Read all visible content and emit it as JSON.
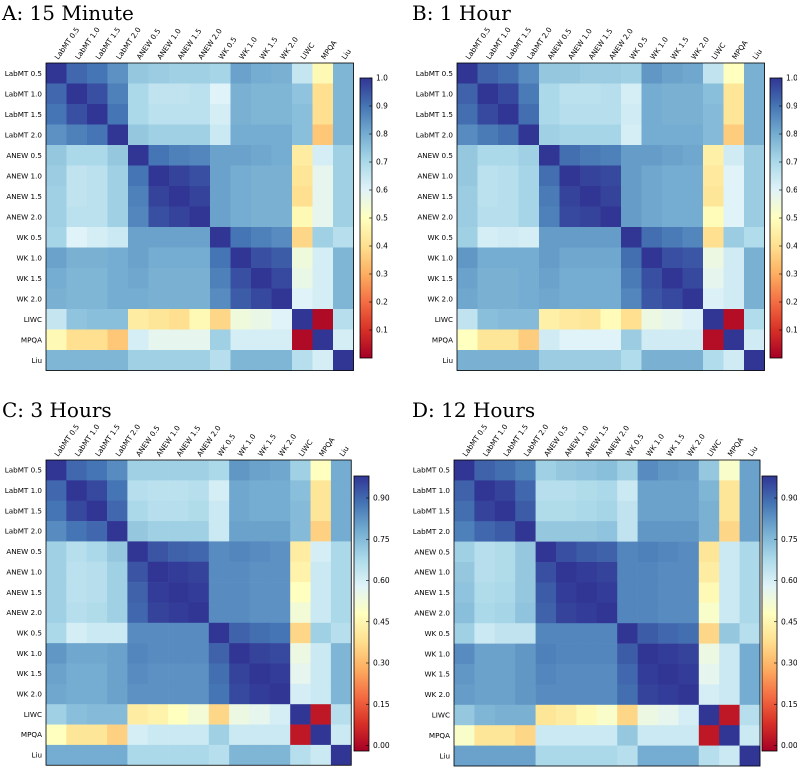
{
  "chart_data": [
    {
      "type": "heatmap",
      "title": "A: 15 Minute",
      "labels": [
        "LabMT 0.5",
        "LabMT 1.0",
        "LabMT 1.5",
        "LabMT 2.0",
        "ANEW 0.5",
        "ANEW 1.0",
        "ANEW 1.5",
        "ANEW 2.0",
        "WK 0.5",
        "WK 1.0",
        "WK 1.5",
        "WK 2.0",
        "LIWC",
        "MPQA",
        "Liu"
      ],
      "colorbar": {
        "min": 0.0,
        "max": 1.0,
        "ticks": [
          "0.1",
          "0.2",
          "0.3",
          "0.4",
          "0.5",
          "0.6",
          "0.7",
          "0.8",
          "0.9",
          "1.0"
        ],
        "tick_values": [
          0.1,
          0.2,
          0.3,
          0.4,
          0.5,
          0.6,
          0.7,
          0.8,
          0.9,
          1.0
        ]
      },
      "matrix": [
        [
          1.0,
          0.92,
          0.9,
          0.85,
          0.74,
          0.73,
          0.72,
          0.72,
          0.71,
          0.82,
          0.8,
          0.79,
          0.65,
          0.48,
          0.78
        ],
        [
          0.92,
          1.0,
          0.96,
          0.88,
          0.7,
          0.66,
          0.66,
          0.67,
          0.6,
          0.79,
          0.78,
          0.78,
          0.75,
          0.4,
          0.78
        ],
        [
          0.9,
          0.96,
          1.0,
          0.9,
          0.7,
          0.67,
          0.67,
          0.67,
          0.62,
          0.79,
          0.78,
          0.78,
          0.76,
          0.4,
          0.78
        ],
        [
          0.85,
          0.88,
          0.9,
          1.0,
          0.74,
          0.72,
          0.72,
          0.72,
          0.64,
          0.8,
          0.8,
          0.8,
          0.76,
          0.35,
          0.78
        ],
        [
          0.74,
          0.7,
          0.7,
          0.74,
          1.0,
          0.9,
          0.88,
          0.87,
          0.82,
          0.82,
          0.81,
          0.8,
          0.44,
          0.62,
          0.72
        ],
        [
          0.73,
          0.66,
          0.67,
          0.72,
          0.9,
          1.0,
          0.98,
          0.96,
          0.82,
          0.8,
          0.79,
          0.79,
          0.42,
          0.58,
          0.72
        ],
        [
          0.72,
          0.66,
          0.67,
          0.72,
          0.88,
          0.98,
          1.0,
          0.98,
          0.82,
          0.8,
          0.79,
          0.79,
          0.4,
          0.58,
          0.72
        ],
        [
          0.72,
          0.67,
          0.67,
          0.72,
          0.87,
          0.96,
          0.98,
          1.0,
          0.82,
          0.8,
          0.79,
          0.79,
          0.48,
          0.58,
          0.72
        ],
        [
          0.71,
          0.6,
          0.62,
          0.64,
          0.82,
          0.82,
          0.82,
          0.82,
          1.0,
          0.9,
          0.88,
          0.86,
          0.38,
          0.72,
          0.68
        ],
        [
          0.82,
          0.79,
          0.79,
          0.8,
          0.82,
          0.8,
          0.8,
          0.8,
          0.9,
          1.0,
          0.96,
          0.94,
          0.55,
          0.62,
          0.78
        ],
        [
          0.8,
          0.78,
          0.78,
          0.8,
          0.81,
          0.79,
          0.79,
          0.79,
          0.88,
          0.96,
          1.0,
          0.97,
          0.57,
          0.62,
          0.78
        ],
        [
          0.79,
          0.78,
          0.78,
          0.8,
          0.8,
          0.79,
          0.79,
          0.79,
          0.86,
          0.94,
          0.97,
          1.0,
          0.6,
          0.62,
          0.78
        ],
        [
          0.65,
          0.75,
          0.76,
          0.76,
          0.44,
          0.42,
          0.4,
          0.48,
          0.38,
          0.55,
          0.57,
          0.6,
          1.0,
          0.02,
          0.68
        ],
        [
          0.48,
          0.4,
          0.4,
          0.35,
          0.62,
          0.58,
          0.58,
          0.58,
          0.72,
          0.62,
          0.62,
          0.62,
          0.02,
          1.0,
          0.62
        ],
        [
          0.78,
          0.78,
          0.78,
          0.78,
          0.72,
          0.72,
          0.72,
          0.72,
          0.68,
          0.78,
          0.78,
          0.78,
          0.68,
          0.62,
          1.0
        ]
      ]
    },
    {
      "type": "heatmap",
      "title": "B: 1 Hour",
      "labels": [
        "LabMT 0.5",
        "LabMT 1.0",
        "LabMT 1.5",
        "LabMT 2.0",
        "ANEW 0.5",
        "ANEW 1.0",
        "ANEW 1.5",
        "ANEW 2.0",
        "WK 0.5",
        "WK 1.0",
        "WK 1.5",
        "WK 2.0",
        "LIWC",
        "MPQA",
        "Liu"
      ],
      "colorbar": {
        "min": 0.0,
        "max": 1.0,
        "ticks": [
          "0.1",
          "0.2",
          "0.3",
          "0.4",
          "0.5",
          "0.6",
          "0.7",
          "0.8",
          "0.9",
          "1.0"
        ],
        "tick_values": [
          0.1,
          0.2,
          0.3,
          0.4,
          0.5,
          0.6,
          0.7,
          0.8,
          0.9,
          1.0
        ]
      },
      "matrix": [
        [
          1.0,
          0.93,
          0.91,
          0.86,
          0.74,
          0.74,
          0.73,
          0.73,
          0.72,
          0.84,
          0.82,
          0.81,
          0.66,
          0.5,
          0.79
        ],
        [
          0.93,
          1.0,
          0.97,
          0.89,
          0.7,
          0.67,
          0.67,
          0.68,
          0.62,
          0.8,
          0.79,
          0.79,
          0.76,
          0.42,
          0.79
        ],
        [
          0.91,
          0.97,
          1.0,
          0.91,
          0.7,
          0.68,
          0.68,
          0.68,
          0.63,
          0.8,
          0.79,
          0.79,
          0.77,
          0.42,
          0.79
        ],
        [
          0.86,
          0.89,
          0.91,
          1.0,
          0.72,
          0.71,
          0.71,
          0.71,
          0.62,
          0.8,
          0.8,
          0.8,
          0.77,
          0.36,
          0.79
        ],
        [
          0.74,
          0.7,
          0.7,
          0.72,
          1.0,
          0.91,
          0.89,
          0.88,
          0.83,
          0.83,
          0.82,
          0.81,
          0.45,
          0.63,
          0.73
        ],
        [
          0.74,
          0.67,
          0.68,
          0.71,
          0.91,
          1.0,
          0.98,
          0.97,
          0.83,
          0.81,
          0.8,
          0.8,
          0.43,
          0.6,
          0.73
        ],
        [
          0.73,
          0.67,
          0.68,
          0.71,
          0.89,
          0.98,
          1.0,
          0.98,
          0.83,
          0.81,
          0.8,
          0.8,
          0.42,
          0.6,
          0.73
        ],
        [
          0.73,
          0.68,
          0.68,
          0.71,
          0.88,
          0.97,
          0.98,
          1.0,
          0.83,
          0.81,
          0.8,
          0.8,
          0.49,
          0.6,
          0.73
        ],
        [
          0.72,
          0.62,
          0.63,
          0.62,
          0.83,
          0.83,
          0.83,
          0.83,
          1.0,
          0.91,
          0.89,
          0.87,
          0.4,
          0.73,
          0.69
        ],
        [
          0.84,
          0.8,
          0.8,
          0.8,
          0.83,
          0.81,
          0.81,
          0.81,
          0.91,
          1.0,
          0.96,
          0.95,
          0.56,
          0.63,
          0.79
        ],
        [
          0.82,
          0.79,
          0.79,
          0.8,
          0.82,
          0.8,
          0.8,
          0.8,
          0.89,
          0.96,
          1.0,
          0.97,
          0.58,
          0.63,
          0.79
        ],
        [
          0.81,
          0.79,
          0.79,
          0.8,
          0.81,
          0.8,
          0.8,
          0.8,
          0.87,
          0.95,
          0.97,
          1.0,
          0.61,
          0.63,
          0.79
        ],
        [
          0.66,
          0.76,
          0.77,
          0.77,
          0.45,
          0.43,
          0.42,
          0.49,
          0.4,
          0.56,
          0.58,
          0.61,
          1.0,
          0.03,
          0.69
        ],
        [
          0.5,
          0.42,
          0.42,
          0.36,
          0.63,
          0.6,
          0.6,
          0.6,
          0.73,
          0.63,
          0.63,
          0.63,
          0.03,
          1.0,
          0.63
        ],
        [
          0.79,
          0.79,
          0.79,
          0.79,
          0.73,
          0.73,
          0.73,
          0.73,
          0.69,
          0.79,
          0.79,
          0.79,
          0.69,
          0.63,
          1.0
        ]
      ]
    },
    {
      "type": "heatmap",
      "title": "C: 3 Hours",
      "labels": [
        "LabMT 0.5",
        "LabMT 1.0",
        "LabMT 1.5",
        "LabMT 2.0",
        "ANEW 0.5",
        "ANEW 1.0",
        "ANEW 1.5",
        "ANEW 2.0",
        "WK 0.5",
        "WK 1.0",
        "WK 1.5",
        "WK 2.0",
        "LIWC",
        "MPQA",
        "Liu"
      ],
      "colorbar": {
        "min": -0.02,
        "max": 0.98,
        "ticks": [
          "0.00",
          "0.15",
          "0.30",
          "0.45",
          "0.60",
          "0.75",
          "0.90"
        ],
        "tick_values": [
          0.0,
          0.15,
          0.3,
          0.45,
          0.6,
          0.75,
          0.9
        ]
      },
      "matrix": [
        [
          0.98,
          0.9,
          0.88,
          0.84,
          0.7,
          0.7,
          0.7,
          0.7,
          0.68,
          0.82,
          0.8,
          0.79,
          0.7,
          0.48,
          0.78
        ],
        [
          0.9,
          0.98,
          0.95,
          0.88,
          0.66,
          0.65,
          0.65,
          0.66,
          0.6,
          0.79,
          0.78,
          0.78,
          0.74,
          0.4,
          0.78
        ],
        [
          0.88,
          0.95,
          0.98,
          0.9,
          0.68,
          0.66,
          0.66,
          0.67,
          0.62,
          0.79,
          0.78,
          0.78,
          0.75,
          0.4,
          0.78
        ],
        [
          0.84,
          0.88,
          0.9,
          0.98,
          0.72,
          0.7,
          0.7,
          0.7,
          0.62,
          0.8,
          0.8,
          0.8,
          0.75,
          0.35,
          0.78
        ],
        [
          0.7,
          0.66,
          0.68,
          0.72,
          0.98,
          0.93,
          0.91,
          0.9,
          0.84,
          0.85,
          0.84,
          0.83,
          0.42,
          0.6,
          0.68
        ],
        [
          0.7,
          0.65,
          0.66,
          0.7,
          0.93,
          0.98,
          0.97,
          0.96,
          0.84,
          0.84,
          0.83,
          0.83,
          0.44,
          0.62,
          0.68
        ],
        [
          0.7,
          0.65,
          0.66,
          0.7,
          0.91,
          0.97,
          0.98,
          0.97,
          0.84,
          0.84,
          0.83,
          0.83,
          0.48,
          0.62,
          0.68
        ],
        [
          0.7,
          0.66,
          0.67,
          0.7,
          0.9,
          0.96,
          0.97,
          0.98,
          0.84,
          0.84,
          0.83,
          0.83,
          0.52,
          0.62,
          0.68
        ],
        [
          0.68,
          0.6,
          0.62,
          0.62,
          0.84,
          0.84,
          0.84,
          0.84,
          0.98,
          0.91,
          0.89,
          0.88,
          0.36,
          0.7,
          0.66
        ],
        [
          0.82,
          0.79,
          0.79,
          0.8,
          0.85,
          0.84,
          0.84,
          0.84,
          0.91,
          0.98,
          0.96,
          0.95,
          0.54,
          0.62,
          0.76
        ],
        [
          0.8,
          0.78,
          0.78,
          0.8,
          0.84,
          0.83,
          0.83,
          0.83,
          0.89,
          0.96,
          0.98,
          0.97,
          0.56,
          0.62,
          0.76
        ],
        [
          0.79,
          0.78,
          0.78,
          0.8,
          0.83,
          0.83,
          0.83,
          0.83,
          0.88,
          0.95,
          0.97,
          0.98,
          0.6,
          0.62,
          0.76
        ],
        [
          0.7,
          0.74,
          0.75,
          0.75,
          0.42,
          0.44,
          0.48,
          0.52,
          0.36,
          0.54,
          0.56,
          0.6,
          0.98,
          0.03,
          0.66
        ],
        [
          0.48,
          0.4,
          0.4,
          0.35,
          0.6,
          0.62,
          0.62,
          0.62,
          0.7,
          0.62,
          0.62,
          0.62,
          0.03,
          0.98,
          0.62
        ],
        [
          0.78,
          0.78,
          0.78,
          0.78,
          0.68,
          0.68,
          0.68,
          0.68,
          0.66,
          0.76,
          0.76,
          0.76,
          0.66,
          0.62,
          0.98
        ]
      ]
    },
    {
      "type": "heatmap",
      "title": "D: 12 Hours",
      "labels": [
        "LabMT 0.5",
        "LabMT 1.0",
        "LabMT 1.5",
        "LabMT 2.0",
        "ANEW 0.5",
        "ANEW 1.0",
        "ANEW 1.5",
        "ANEW 2.0",
        "WK 0.5",
        "WK 1.0",
        "WK 1.5",
        "WK 2.0",
        "LIWC",
        "MPQA",
        "Liu"
      ],
      "colorbar": {
        "min": -0.02,
        "max": 0.98,
        "ticks": [
          "0.00",
          "0.15",
          "0.30",
          "0.45",
          "0.60",
          "0.75",
          "0.90"
        ],
        "tick_values": [
          0.0,
          0.15,
          0.3,
          0.45,
          0.6,
          0.75,
          0.9
        ]
      },
      "matrix": [
        [
          0.98,
          0.91,
          0.89,
          0.86,
          0.7,
          0.72,
          0.73,
          0.74,
          0.7,
          0.84,
          0.82,
          0.81,
          0.72,
          0.5,
          0.8
        ],
        [
          0.91,
          0.98,
          0.96,
          0.9,
          0.66,
          0.66,
          0.67,
          0.68,
          0.62,
          0.8,
          0.8,
          0.8,
          0.76,
          0.4,
          0.8
        ],
        [
          0.89,
          0.96,
          0.98,
          0.92,
          0.67,
          0.67,
          0.68,
          0.69,
          0.64,
          0.8,
          0.8,
          0.8,
          0.77,
          0.4,
          0.8
        ],
        [
          0.86,
          0.9,
          0.92,
          0.98,
          0.72,
          0.72,
          0.72,
          0.73,
          0.64,
          0.82,
          0.82,
          0.82,
          0.77,
          0.36,
          0.8
        ],
        [
          0.7,
          0.66,
          0.67,
          0.72,
          0.98,
          0.94,
          0.92,
          0.91,
          0.85,
          0.86,
          0.85,
          0.84,
          0.4,
          0.62,
          0.68
        ],
        [
          0.72,
          0.66,
          0.67,
          0.72,
          0.94,
          0.98,
          0.97,
          0.96,
          0.85,
          0.85,
          0.84,
          0.84,
          0.42,
          0.62,
          0.68
        ],
        [
          0.73,
          0.67,
          0.68,
          0.72,
          0.92,
          0.97,
          0.98,
          0.97,
          0.85,
          0.85,
          0.84,
          0.84,
          0.46,
          0.62,
          0.68
        ],
        [
          0.74,
          0.68,
          0.69,
          0.73,
          0.91,
          0.96,
          0.97,
          0.98,
          0.85,
          0.85,
          0.84,
          0.84,
          0.5,
          0.62,
          0.68
        ],
        [
          0.7,
          0.62,
          0.64,
          0.64,
          0.85,
          0.85,
          0.85,
          0.85,
          0.98,
          0.92,
          0.9,
          0.89,
          0.36,
          0.72,
          0.66
        ],
        [
          0.84,
          0.8,
          0.8,
          0.82,
          0.86,
          0.85,
          0.85,
          0.85,
          0.92,
          0.98,
          0.97,
          0.96,
          0.54,
          0.62,
          0.78
        ],
        [
          0.82,
          0.8,
          0.8,
          0.82,
          0.85,
          0.84,
          0.84,
          0.84,
          0.9,
          0.97,
          0.98,
          0.97,
          0.56,
          0.62,
          0.78
        ],
        [
          0.81,
          0.8,
          0.8,
          0.82,
          0.84,
          0.84,
          0.84,
          0.84,
          0.89,
          0.96,
          0.97,
          0.98,
          0.6,
          0.62,
          0.78
        ],
        [
          0.72,
          0.76,
          0.77,
          0.77,
          0.4,
          0.42,
          0.46,
          0.5,
          0.36,
          0.54,
          0.56,
          0.6,
          0.98,
          0.03,
          0.66
        ],
        [
          0.5,
          0.4,
          0.4,
          0.36,
          0.62,
          0.62,
          0.62,
          0.62,
          0.72,
          0.62,
          0.62,
          0.62,
          0.03,
          0.98,
          0.62
        ],
        [
          0.8,
          0.8,
          0.8,
          0.8,
          0.68,
          0.68,
          0.68,
          0.68,
          0.66,
          0.78,
          0.78,
          0.78,
          0.66,
          0.62,
          0.98
        ]
      ]
    }
  ]
}
